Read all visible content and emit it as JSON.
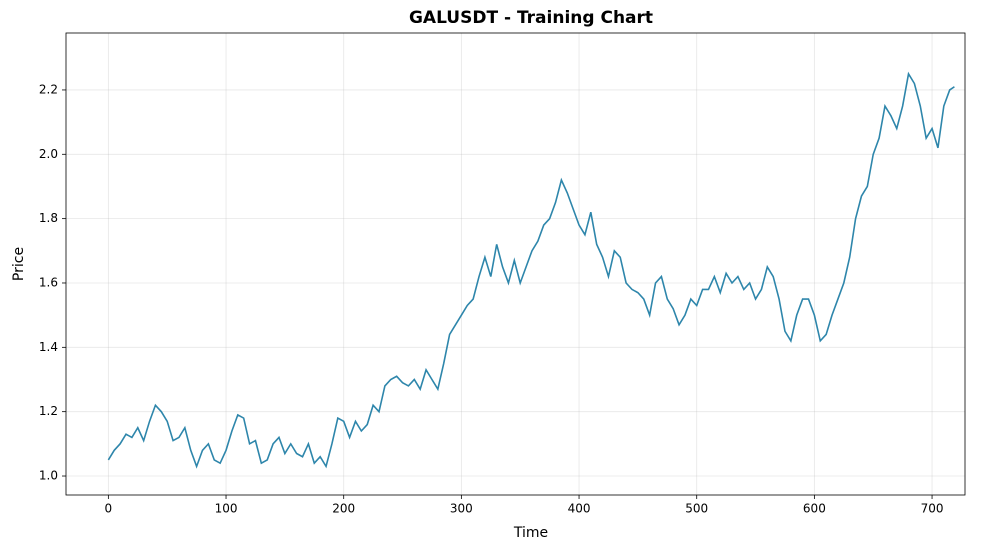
{
  "chart_data": {
    "type": "line",
    "title": "GALUSDT - Training Chart",
    "x_label": "Time",
    "y_label": "Price",
    "x": [
      0,
      5,
      10,
      15,
      20,
      25,
      30,
      35,
      40,
      45,
      50,
      55,
      60,
      65,
      70,
      75,
      80,
      85,
      90,
      95,
      100,
      105,
      110,
      115,
      120,
      125,
      130,
      135,
      140,
      145,
      150,
      155,
      160,
      165,
      170,
      175,
      180,
      185,
      190,
      195,
      200,
      205,
      210,
      215,
      220,
      225,
      230,
      235,
      240,
      245,
      250,
      255,
      260,
      265,
      270,
      275,
      280,
      285,
      290,
      295,
      300,
      305,
      310,
      315,
      320,
      325,
      330,
      335,
      340,
      345,
      350,
      355,
      360,
      365,
      370,
      375,
      380,
      385,
      390,
      395,
      400,
      405,
      410,
      415,
      420,
      425,
      430,
      435,
      440,
      445,
      450,
      455,
      460,
      465,
      470,
      475,
      480,
      485,
      490,
      495,
      500,
      505,
      510,
      515,
      520,
      525,
      530,
      535,
      540,
      545,
      550,
      555,
      560,
      565,
      570,
      575,
      580,
      585,
      590,
      595,
      600,
      605,
      610,
      615,
      620,
      625,
      630,
      635,
      640,
      645,
      650,
      655,
      660,
      665,
      670,
      675,
      680,
      685,
      690,
      695,
      700,
      705,
      710,
      715,
      719
    ],
    "series": [
      {
        "name": "GALUSDT",
        "color": "#2e86ab",
        "values": [
          1.05,
          1.08,
          1.1,
          1.13,
          1.12,
          1.15,
          1.11,
          1.17,
          1.22,
          1.2,
          1.17,
          1.11,
          1.12,
          1.15,
          1.08,
          1.03,
          1.08,
          1.1,
          1.05,
          1.04,
          1.08,
          1.14,
          1.19,
          1.18,
          1.1,
          1.11,
          1.04,
          1.05,
          1.1,
          1.12,
          1.07,
          1.1,
          1.07,
          1.06,
          1.1,
          1.04,
          1.06,
          1.03,
          1.1,
          1.18,
          1.17,
          1.12,
          1.17,
          1.14,
          1.16,
          1.22,
          1.2,
          1.28,
          1.3,
          1.31,
          1.29,
          1.28,
          1.3,
          1.27,
          1.33,
          1.3,
          1.27,
          1.35,
          1.44,
          1.47,
          1.5,
          1.53,
          1.55,
          1.62,
          1.68,
          1.62,
          1.72,
          1.65,
          1.6,
          1.67,
          1.6,
          1.65,
          1.7,
          1.73,
          1.78,
          1.8,
          1.85,
          1.92,
          1.88,
          1.83,
          1.78,
          1.75,
          1.82,
          1.72,
          1.68,
          1.62,
          1.7,
          1.68,
          1.6,
          1.58,
          1.57,
          1.55,
          1.5,
          1.6,
          1.62,
          1.55,
          1.52,
          1.47,
          1.5,
          1.55,
          1.53,
          1.58,
          1.58,
          1.62,
          1.57,
          1.63,
          1.6,
          1.62,
          1.58,
          1.6,
          1.55,
          1.58,
          1.65,
          1.62,
          1.55,
          1.45,
          1.42,
          1.5,
          1.55,
          1.55,
          1.5,
          1.42,
          1.44,
          1.5,
          1.55,
          1.6,
          1.68,
          1.8,
          1.87,
          1.9,
          2.0,
          2.05,
          2.15,
          2.12,
          2.08,
          2.15,
          2.25,
          2.22,
          2.15,
          2.05,
          2.08,
          2.02,
          2.15,
          2.2,
          2.21
        ]
      }
    ],
    "xlim": [
      -36,
      728
    ],
    "ylim": [
      0.941,
      2.377
    ],
    "xticks": [
      0,
      100,
      200,
      300,
      400,
      500,
      600,
      700
    ],
    "yticks": [
      {
        "value": 1,
        "label": "1.0"
      },
      1.2,
      1.4,
      1.6,
      1.8,
      {
        "value": 2,
        "label": "2.0"
      },
      2.2
    ],
    "grid": true
  }
}
